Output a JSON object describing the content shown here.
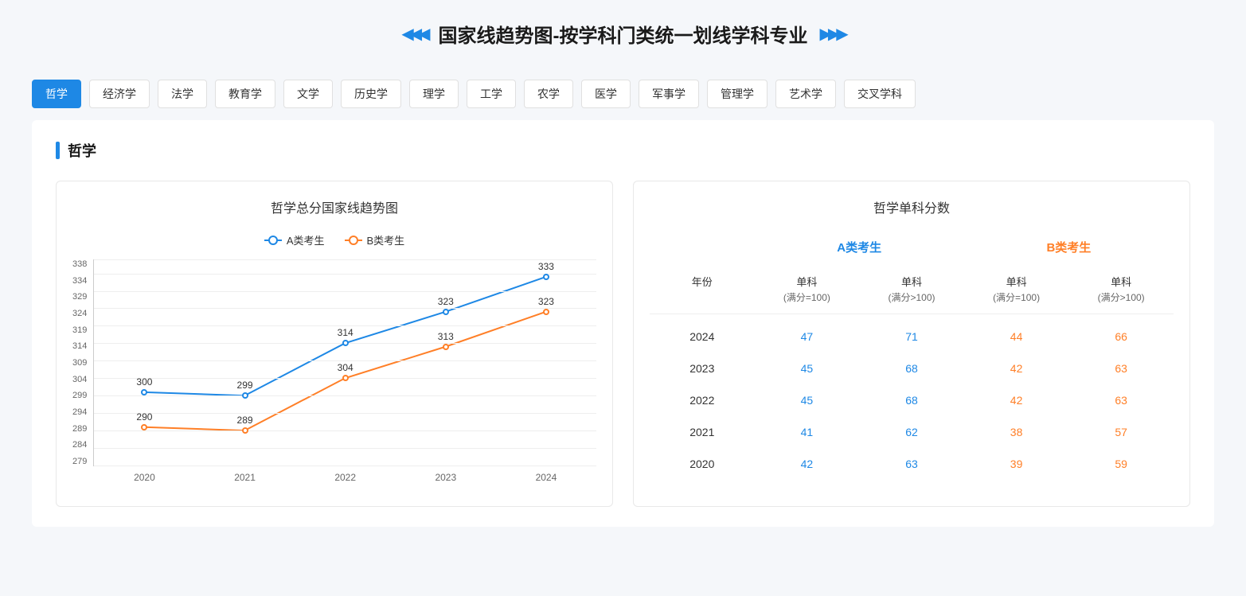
{
  "header": {
    "title": "国家线趋势图-按学科门类统一划线学科专业"
  },
  "tabs": [
    "哲学",
    "经济学",
    "法学",
    "教育学",
    "文学",
    "历史学",
    "理学",
    "工学",
    "农学",
    "医学",
    "军事学",
    "管理学",
    "艺术学",
    "交叉学科"
  ],
  "active_tab": "哲学",
  "section_title": "哲学",
  "colors": {
    "series_a": "#1e88e5",
    "series_b": "#ff7f27",
    "background": "#f5f7fa",
    "card_bg": "#ffffff",
    "grid": "#eeeeee",
    "axis": "#cccccc",
    "text": "#333333"
  },
  "chart": {
    "title": "哲学总分国家线趋势图",
    "type": "line",
    "legend": {
      "a": "A类考生",
      "b": "B类考生"
    },
    "x_labels": [
      "2020",
      "2021",
      "2022",
      "2023",
      "2024"
    ],
    "y_ticks": [
      279,
      284,
      289,
      294,
      299,
      304,
      309,
      314,
      319,
      324,
      329,
      334,
      338
    ],
    "ylim": [
      279,
      338
    ],
    "series_a": [
      300,
      299,
      314,
      323,
      333
    ],
    "series_b": [
      290,
      289,
      304,
      313,
      323
    ],
    "line_width": 2,
    "marker_size": 8
  },
  "table": {
    "title": "哲学单科分数",
    "group_a": "A类考生",
    "group_b": "B类考生",
    "col_year": "年份",
    "col_sub1": "单科",
    "col_sub1_note": "(满分=100)",
    "col_sub2": "单科",
    "col_sub2_note": "(满分>100)",
    "rows": [
      {
        "year": "2024",
        "a1": "47",
        "a2": "71",
        "b1": "44",
        "b2": "66"
      },
      {
        "year": "2023",
        "a1": "45",
        "a2": "68",
        "b1": "42",
        "b2": "63"
      },
      {
        "year": "2022",
        "a1": "45",
        "a2": "68",
        "b1": "42",
        "b2": "63"
      },
      {
        "year": "2021",
        "a1": "41",
        "a2": "62",
        "b1": "38",
        "b2": "57"
      },
      {
        "year": "2020",
        "a1": "42",
        "a2": "63",
        "b1": "39",
        "b2": "59"
      }
    ]
  }
}
